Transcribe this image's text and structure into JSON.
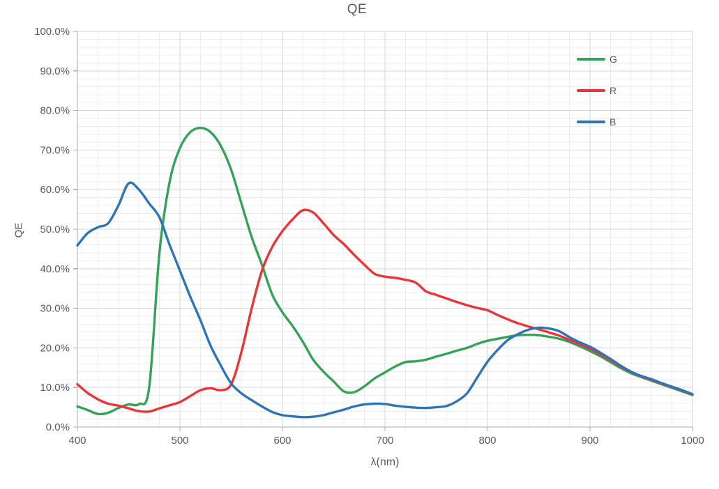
{
  "chart_data": {
    "type": "line",
    "title": "QE",
    "xlabel": "λ(nm)",
    "ylabel": "QE",
    "xlim": [
      400,
      1000
    ],
    "ylim_pct": [
      0,
      100
    ],
    "x_major_ticks": [
      400,
      500,
      600,
      700,
      800,
      900,
      1000
    ],
    "x_minor_step_nm": 20,
    "y_major_tick_labels": [
      "0.0%",
      "10.0%",
      "20.0%",
      "30.0%",
      "40.0%",
      "50.0%",
      "60.0%",
      "70.0%",
      "80.0%",
      "90.0%",
      "100.0%"
    ],
    "y_minor_step_pct": 2,
    "grid": "major and minor, light gray",
    "legend_position": "inside-top-right",
    "x_nm": [
      400,
      410,
      420,
      430,
      440,
      450,
      460,
      470,
      480,
      490,
      500,
      510,
      520,
      530,
      540,
      550,
      560,
      570,
      580,
      590,
      600,
      610,
      620,
      630,
      640,
      650,
      660,
      670,
      680,
      690,
      700,
      710,
      720,
      730,
      740,
      750,
      760,
      770,
      780,
      790,
      800,
      810,
      820,
      830,
      840,
      850,
      860,
      870,
      880,
      890,
      900,
      910,
      920,
      930,
      940,
      950,
      960,
      970,
      980,
      990,
      1000
    ],
    "series": [
      {
        "name": "G",
        "color": "#33A457",
        "peak_note": "peak 75.6% at ~522nm, local min 8.8% at ~663nm, secondary max 23.3% at ~840nm",
        "values_pct": [
          5.2,
          4.3,
          3.3,
          3.6,
          4.8,
          5.7,
          5.8,
          10.0,
          44.0,
          62.0,
          70.5,
          74.5,
          75.6,
          74.5,
          71.0,
          65.0,
          56.5,
          48.0,
          41.0,
          33.5,
          29.0,
          25.5,
          21.5,
          17.0,
          14.0,
          11.5,
          9.0,
          8.8,
          10.3,
          12.3,
          13.8,
          15.3,
          16.4,
          16.6,
          17.0,
          17.8,
          18.5,
          19.3,
          20.0,
          21.0,
          21.8,
          22.3,
          22.8,
          23.2,
          23.3,
          23.2,
          22.8,
          22.3,
          21.5,
          20.4,
          19.2,
          17.9,
          16.4,
          14.9,
          13.6,
          12.6,
          11.7,
          10.8,
          9.9,
          9.0,
          8.1
        ]
      },
      {
        "name": "R",
        "color": "#EC3438",
        "peak_note": "min ~3.9% at ~465nm, peak 54.8% at ~622nm, shoulder ~37-38% near 700-730nm",
        "values_pct": [
          10.8,
          8.6,
          7.0,
          5.9,
          5.4,
          4.7,
          4.0,
          3.9,
          4.7,
          5.5,
          6.3,
          7.8,
          9.3,
          9.8,
          9.3,
          10.8,
          19.0,
          30.0,
          39.5,
          45.5,
          49.5,
          52.5,
          54.8,
          54.2,
          51.5,
          48.5,
          46.2,
          43.5,
          41.0,
          38.7,
          38.0,
          37.7,
          37.2,
          36.5,
          34.3,
          33.4,
          32.5,
          31.6,
          30.8,
          30.1,
          29.5,
          28.3,
          27.2,
          26.2,
          25.4,
          24.7,
          23.9,
          23.1,
          22.0,
          20.9,
          19.8,
          18.4,
          16.9,
          15.3,
          13.9,
          12.8,
          11.9,
          11.0,
          10.1,
          9.2,
          8.2
        ]
      },
      {
        "name": "B",
        "color": "#2E74B9",
        "peak_note": "peak 61.8% at ~452nm, min ~2.5% at ~620nm, secondary max 25.1% at ~850nm",
        "values_pct": [
          45.9,
          49.0,
          50.5,
          51.5,
          56.0,
          61.6,
          60.0,
          56.5,
          53.0,
          46.0,
          39.5,
          33.0,
          27.0,
          20.5,
          15.5,
          11.0,
          8.5,
          6.8,
          5.2,
          3.8,
          3.0,
          2.7,
          2.5,
          2.6,
          3.0,
          3.7,
          4.4,
          5.2,
          5.7,
          5.9,
          5.8,
          5.4,
          5.1,
          4.9,
          4.8,
          5.0,
          5.3,
          6.5,
          8.5,
          12.5,
          16.5,
          19.5,
          22.0,
          23.5,
          24.6,
          25.1,
          24.9,
          24.2,
          22.7,
          21.4,
          20.3,
          18.8,
          17.2,
          15.5,
          14.0,
          12.9,
          12.1,
          11.1,
          10.2,
          9.3,
          8.3
        ]
      }
    ],
    "style_colors": {
      "text": "#595959",
      "axis_line": "#ABABAB",
      "grid_major": "#D6D6D6",
      "grid_minor": "#ECECEC",
      "background": "#FFFFFF"
    }
  }
}
